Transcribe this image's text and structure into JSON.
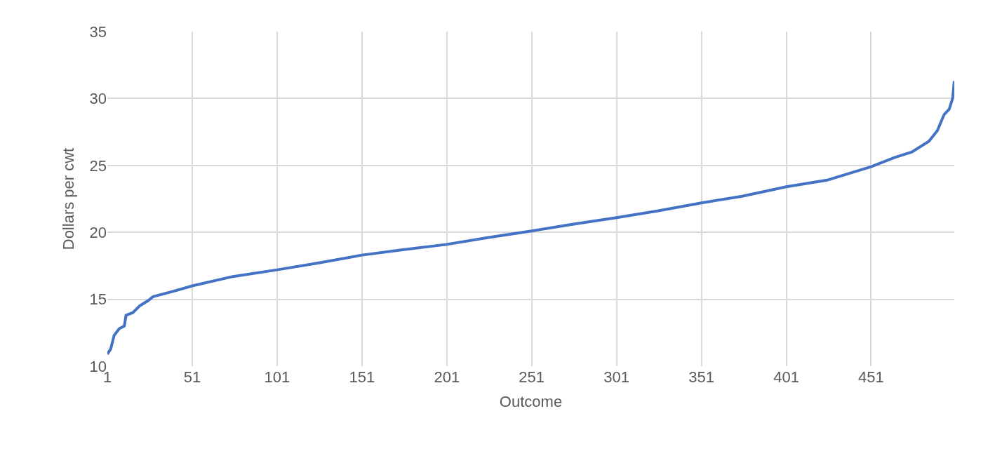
{
  "chart_data": {
    "type": "line",
    "xlabel": "Outcome",
    "ylabel": "Dollars per cwt",
    "x": [
      1,
      3,
      5,
      8,
      11,
      12,
      16,
      20,
      25,
      28,
      40,
      51,
      75,
      101,
      125,
      151,
      175,
      201,
      225,
      251,
      275,
      301,
      325,
      351,
      375,
      401,
      425,
      451,
      465,
      475,
      485,
      490,
      494,
      497,
      499,
      500
    ],
    "series": [
      {
        "color": "#4472c4",
        "values": [
          10.9,
          11.3,
          12.3,
          12.8,
          13.0,
          13.8,
          14.0,
          14.5,
          14.9,
          15.2,
          15.6,
          16.0,
          16.7,
          17.2,
          17.7,
          18.3,
          18.7,
          19.1,
          19.6,
          20.1,
          20.6,
          21.1,
          21.6,
          22.2,
          22.7,
          23.4,
          23.9,
          24.9,
          25.6,
          26.0,
          26.8,
          27.6,
          28.8,
          29.2,
          30.0,
          31.3
        ]
      }
    ],
    "xlim": [
      1,
      500
    ],
    "xticks": [
      1,
      51,
      101,
      151,
      201,
      251,
      301,
      351,
      401,
      451
    ],
    "ylim": [
      10,
      35
    ],
    "yticks": [
      10,
      15,
      20,
      25,
      30,
      35
    ],
    "grid": true,
    "marker": "none",
    "line_style": "solid"
  }
}
